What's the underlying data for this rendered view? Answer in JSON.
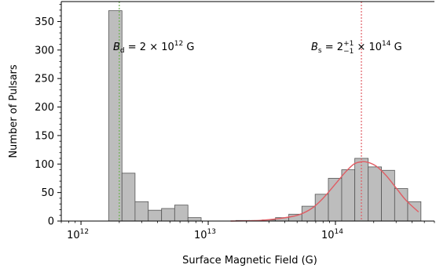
{
  "chart_data": {
    "type": "bar",
    "xlabel": "Surface Magnetic Field (G)",
    "ylabel": "Number of Pulsars",
    "x_scale": "log",
    "xlim": [
      700000000000.0,
      600000000000000.0
    ],
    "ylim": [
      0,
      385
    ],
    "xticks": [
      {
        "value": 1000000000000.0,
        "base": "10",
        "exp": "12"
      },
      {
        "value": 10000000000000.0,
        "base": "10",
        "exp": "13"
      },
      {
        "value": 100000000000000.0,
        "base": "10",
        "exp": "14"
      }
    ],
    "yticks": [
      0,
      50,
      100,
      150,
      200,
      250,
      300,
      350
    ],
    "bins": [
      {
        "left": 1650000000000.0,
        "right": 2100000000000.0,
        "count": 369
      },
      {
        "left": 2100000000000.0,
        "right": 2660000000000.0,
        "count": 84
      },
      {
        "left": 2660000000000.0,
        "right": 3380000000000.0,
        "count": 34
      },
      {
        "left": 3380000000000.0,
        "right": 4300000000000.0,
        "count": 19
      },
      {
        "left": 4300000000000.0,
        "right": 5450000000000.0,
        "count": 22
      },
      {
        "left": 5450000000000.0,
        "right": 6930000000000.0,
        "count": 28
      },
      {
        "left": 6930000000000.0,
        "right": 8800000000000.0,
        "count": 6
      },
      {
        "left": 16500000000000.0,
        "right": 21000000000000.0,
        "count": 1
      },
      {
        "left": 21000000000000.0,
        "right": 26600000000000.0,
        "count": 1
      },
      {
        "left": 26600000000000.0,
        "right": 33800000000000.0,
        "count": 2
      },
      {
        "left": 33800000000000.0,
        "right": 43000000000000.0,
        "count": 6
      },
      {
        "left": 43000000000000.0,
        "right": 54500000000000.0,
        "count": 12
      },
      {
        "left": 54500000000000.0,
        "right": 69300000000000.0,
        "count": 26
      },
      {
        "left": 69300000000000.0,
        "right": 88000000000000.0,
        "count": 47
      },
      {
        "left": 88000000000000.0,
        "right": 112000000000000.0,
        "count": 75
      },
      {
        "left": 112000000000000.0,
        "right": 142000000000000.0,
        "count": 90
      },
      {
        "left": 142000000000000.0,
        "right": 181000000000000.0,
        "count": 110
      },
      {
        "left": 181000000000000.0,
        "right": 230000000000000.0,
        "count": 95
      },
      {
        "left": 230000000000000.0,
        "right": 292000000000000.0,
        "count": 89
      },
      {
        "left": 292000000000000.0,
        "right": 370000000000000.0,
        "count": 57
      },
      {
        "left": 370000000000000.0,
        "right": 470000000000000.0,
        "count": 34
      }
    ],
    "fit_curve": {
      "color": "#e05c63",
      "points": [
        [
          15000000000000.0,
          0
        ],
        [
          25000000000000.0,
          1
        ],
        [
          35000000000000.0,
          4
        ],
        [
          50000000000000.0,
          10
        ],
        [
          65000000000000.0,
          22
        ],
        [
          80000000000000.0,
          40
        ],
        [
          100000000000000.0,
          65
        ],
        [
          120000000000000.0,
          86
        ],
        [
          140000000000000.0,
          100
        ],
        [
          160000000000000.0,
          104
        ],
        [
          180000000000000.0,
          103
        ],
        [
          210000000000000.0,
          96
        ],
        [
          250000000000000.0,
          80
        ],
        [
          300000000000000.0,
          58
        ],
        [
          360000000000000.0,
          36
        ],
        [
          450000000000000.0,
          16
        ]
      ]
    },
    "vlines": [
      {
        "x": 2000000000000.0,
        "color": "#6ab04c"
      },
      {
        "x": 160000000000000.0,
        "color": "#e05c63"
      }
    ],
    "annotations": {
      "left": {
        "var": "B",
        "sub": "d",
        "rest": " = 2 × 10",
        "exp": "12",
        "unit": " G"
      },
      "right": {
        "var": "B",
        "sub": "s",
        "rest1": " = 2",
        "sup": "+1",
        "low": "−1",
        "rest2": " × 10",
        "exp": "14",
        "unit": " G"
      }
    },
    "bar_fill": "#bdbdbd",
    "bar_edge": "#555555"
  }
}
